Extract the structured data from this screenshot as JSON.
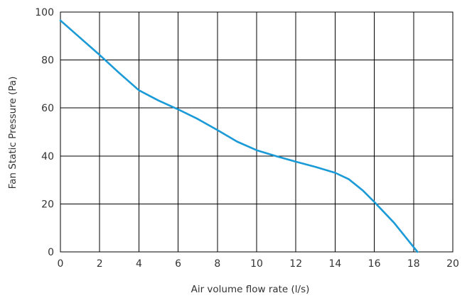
{
  "chart_data": {
    "type": "line",
    "title": "",
    "xlabel": "Air volume flow rate (l/s)",
    "ylabel": "Fan Static Pressure (Pa)",
    "xlim": [
      0,
      20
    ],
    "ylim": [
      0,
      100
    ],
    "x_ticks": [
      "0",
      "2",
      "4",
      "6",
      "8",
      "10",
      "12",
      "14",
      "16",
      "18",
      "20"
    ],
    "y_ticks": [
      "0",
      "20",
      "40",
      "60",
      "80",
      "100"
    ],
    "grid": true,
    "legend": "none",
    "series": [
      {
        "color": "#1a9ad6",
        "x": [
          0,
          1,
          2,
          3,
          4,
          5,
          6,
          7,
          8,
          9,
          10,
          11,
          12,
          13,
          14,
          14.7,
          15.4,
          16,
          17,
          18,
          18.2
        ],
        "y": [
          96.5,
          89.3,
          82.1,
          74.6,
          67.4,
          63.1,
          59.4,
          55.4,
          50.8,
          46.0,
          42.4,
          39.9,
          37.6,
          35.4,
          33.0,
          30.3,
          25.7,
          20.8,
          12.2,
          2.0,
          0
        ]
      }
    ]
  }
}
